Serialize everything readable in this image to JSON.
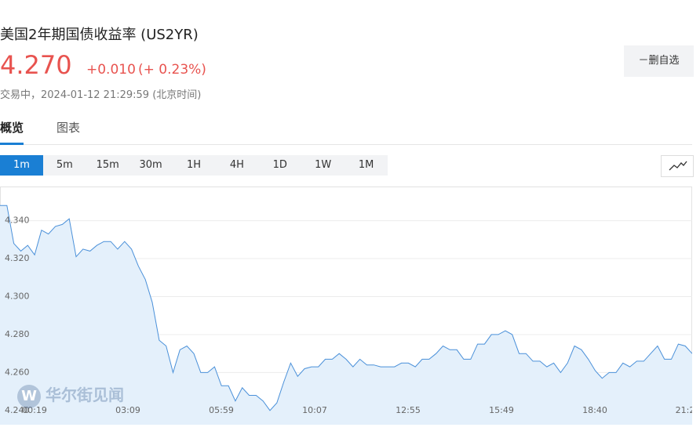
{
  "header": {
    "title": "美国2年期国债收益率 (US2YR)",
    "price": "4.270",
    "change": "+0.010",
    "change_pct": "(+ 0.23%)",
    "status": "交易中，2024-01-12 21:29:59 (北京时间)",
    "watch_button": "－删自选"
  },
  "tabs": [
    "概览",
    "图表"
  ],
  "ranges": [
    "1m",
    "5m",
    "15m",
    "30m",
    "1H",
    "4H",
    "1D",
    "1W",
    "1M"
  ],
  "watermark": "华尔街见闻",
  "chart_data": {
    "type": "area",
    "color": "#4a90d9",
    "fill": "#e4f0fb",
    "grid": true,
    "x_labels": [
      "00:19",
      "03:09",
      "05:59",
      "10:07",
      "12:55",
      "15:49",
      "18:40",
      "21:2"
    ],
    "values": [
      4.348,
      4.348,
      4.328,
      4.324,
      4.327,
      4.322,
      4.335,
      4.333,
      4.337,
      4.338,
      4.341,
      4.321,
      4.325,
      4.324,
      4.327,
      4.329,
      4.329,
      4.325,
      4.329,
      4.325,
      4.316,
      4.309,
      4.297,
      4.277,
      4.274,
      4.26,
      4.272,
      4.274,
      4.27,
      4.26,
      4.26,
      4.263,
      4.253,
      4.253,
      4.245,
      4.252,
      4.248,
      4.248,
      4.245,
      4.24,
      4.244,
      4.255,
      4.265,
      4.258,
      4.262,
      4.263,
      4.263,
      4.267,
      4.267,
      4.27,
      4.267,
      4.263,
      4.267,
      4.264,
      4.264,
      4.263,
      4.263,
      4.263,
      4.265,
      4.265,
      4.263,
      4.267,
      4.267,
      4.27,
      4.274,
      4.272,
      4.272,
      4.267,
      4.267,
      4.275,
      4.275,
      4.28,
      4.28,
      4.282,
      4.28,
      4.27,
      4.27,
      4.266,
      4.266,
      4.263,
      4.265,
      4.26,
      4.265,
      4.274,
      4.272,
      4.267,
      4.261,
      4.257,
      4.26,
      4.26,
      4.265,
      4.263,
      4.266,
      4.266,
      4.27,
      4.274,
      4.267,
      4.267,
      4.275,
      4.274,
      4.27
    ],
    "ylim": [
      4.2325,
      4.358
    ],
    "yticks": [
      {
        "value": 4.24,
        "label": "4.240"
      },
      {
        "value": 4.26,
        "label": "4.260"
      },
      {
        "value": 4.28,
        "label": "4.280"
      },
      {
        "value": 4.3,
        "label": "4.300"
      },
      {
        "value": 4.32,
        "label": "4.320"
      },
      {
        "value": 4.34,
        "label": "4.340"
      }
    ]
  }
}
